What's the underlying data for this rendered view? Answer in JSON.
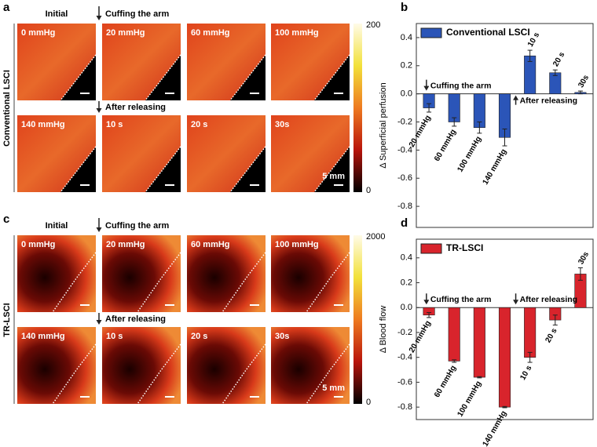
{
  "panels": [
    {
      "letter": "a",
      "side_label": "Conventional  LSCI",
      "initial": "Initial",
      "cuff": "Cuffing the arm",
      "release": "After releasing",
      "image_labels": [
        [
          "0 mmHg",
          "20 mmHg",
          "60 mmHg",
          "100 mmHg"
        ],
        [
          "140 mmHg",
          "10 s",
          "20 s",
          "30s"
        ]
      ],
      "colorbar_ticks": [
        200,
        0
      ],
      "scale_bar": "5 mm"
    },
    {
      "letter": "c",
      "side_label": "TR-LSCI",
      "initial": "Initial",
      "cuff": "Cuffing the arm",
      "release": "After releasing",
      "image_labels": [
        [
          "0 mmHg",
          "20 mmHg",
          "60 mmHg",
          "100 mmHg"
        ],
        [
          "140 mmHg",
          "10 s",
          "20 s",
          "30s"
        ]
      ],
      "colorbar_ticks": [
        2000,
        0
      ],
      "scale_bar": "5 mm"
    }
  ],
  "chart_data": [
    {
      "type": "bar",
      "panel_label": "b",
      "ylabel": "Δ Superficial perfusion",
      "categories": [
        "20 mmHg",
        "60 mmHg",
        "100 mmHg",
        "140 mmHg",
        "10 s",
        "20 s",
        "30s"
      ],
      "series": [
        {
          "name": "Conventional LSCI",
          "color": "#2b55b8",
          "values": [
            -0.1,
            -0.2,
            -0.24,
            -0.31,
            0.27,
            0.15,
            0.01
          ],
          "errors": [
            0.03,
            0.03,
            0.04,
            0.06,
            0.04,
            0.02,
            0.01
          ]
        }
      ],
      "annotations": [
        {
          "text": "Cuffing the arm",
          "at": 0
        },
        {
          "text": "After releasing",
          "at": 4
        }
      ],
      "ylim": [
        -0.95,
        0.5
      ],
      "yticks": [
        -0.8,
        -0.6,
        -0.4,
        -0.2,
        {
          "value": 0,
          "label": "0.0"
        },
        0.2,
        0.4
      ],
      "legend": "upper left"
    },
    {
      "type": "bar",
      "panel_label": "d",
      "ylabel": "Δ Blood flow",
      "categories": [
        "20 mmHg",
        "60 mmHg",
        "100 mmHg",
        "140 mmHg",
        "10 s",
        "20 s",
        "30s"
      ],
      "series": [
        {
          "name": "TR-LSCI",
          "color": "#d8242c",
          "values": [
            -0.06,
            -0.43,
            -0.56,
            -0.8,
            -0.4,
            -0.1,
            0.27
          ],
          "errors": [
            0.02,
            0.01,
            0.005,
            0.005,
            0.04,
            0.04,
            0.05
          ]
        }
      ],
      "annotations": [
        {
          "text": "Cuffing the arm",
          "at": 0
        },
        {
          "text": "After releasing",
          "at": 4
        }
      ],
      "ylim": [
        -0.9,
        0.55
      ],
      "yticks": [
        -0.8,
        -0.6,
        -0.4,
        -0.2,
        {
          "value": 0,
          "label": "0.0"
        },
        0.2,
        0.4
      ],
      "legend": "upper left"
    }
  ]
}
